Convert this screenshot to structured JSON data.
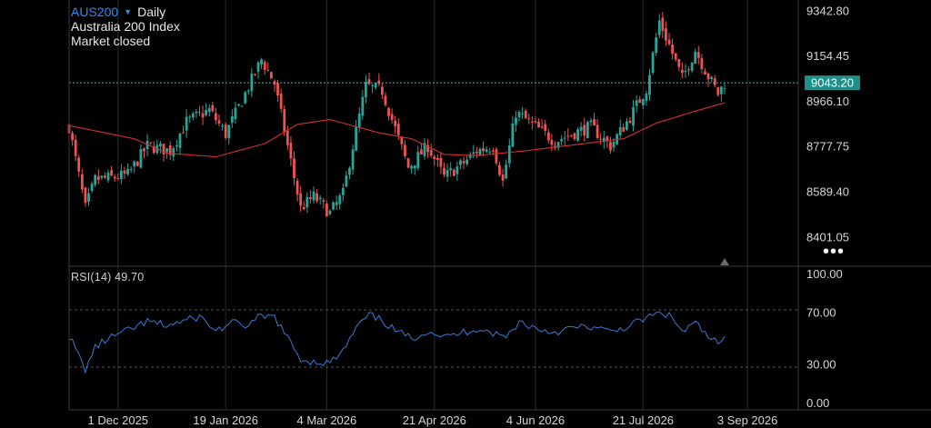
{
  "header": {
    "symbol": "AUS200",
    "timeframe": "Daily",
    "name": "Australia 200 Index",
    "status": "Market closed"
  },
  "last_price": "9043.20",
  "rsi_label": "RSI(14)",
  "rsi_value": "49.70",
  "colors": {
    "up": "#26a69a",
    "down": "#ef5350",
    "ma": "#d32f2f",
    "rsi": "#3a7bd5",
    "price_tag": "#1f8f89",
    "grid": "#2a2a2a"
  },
  "chart_data": [
    {
      "type": "candlestick",
      "title": "AUS200 Daily",
      "y_ticks": [
        "9342.80",
        "9154.45",
        "8966.10",
        "8777.75",
        "8589.40",
        "8401.05"
      ],
      "ylim": [
        8279,
        9388
      ],
      "x_ticks": [
        "1 Dec 2025",
        "19 Jan 2026",
        "4 Mar 2026",
        "21 Apr 2026",
        "4 Jun 2026",
        "21 Jul 2026",
        "3 Sep 2026"
      ],
      "x_tick_index": [
        15,
        48,
        79,
        112,
        143,
        176,
        208
      ],
      "moving_average_anchors": [
        [
          0,
          8865
        ],
        [
          20,
          8810
        ],
        [
          30,
          8750
        ],
        [
          45,
          8735
        ],
        [
          60,
          8790
        ],
        [
          70,
          8870
        ],
        [
          80,
          8890
        ],
        [
          95,
          8835
        ],
        [
          105,
          8810
        ],
        [
          115,
          8745
        ],
        [
          125,
          8740
        ],
        [
          140,
          8760
        ],
        [
          155,
          8785
        ],
        [
          170,
          8810
        ],
        [
          180,
          8875
        ],
        [
          192,
          8925
        ],
        [
          201,
          8960
        ]
      ],
      "close_anchors": [
        [
          0,
          8860
        ],
        [
          5,
          8520
        ],
        [
          8,
          8640
        ],
        [
          14,
          8650
        ],
        [
          18,
          8660
        ],
        [
          24,
          8780
        ],
        [
          31,
          8760
        ],
        [
          36,
          8880
        ],
        [
          43,
          8930
        ],
        [
          48,
          8830
        ],
        [
          53,
          8970
        ],
        [
          59,
          9140
        ],
        [
          63,
          9040
        ],
        [
          71,
          8520
        ],
        [
          75,
          8570
        ],
        [
          80,
          8500
        ],
        [
          84,
          8580
        ],
        [
          87,
          8780
        ],
        [
          91,
          9030
        ],
        [
          96,
          9010
        ],
        [
          99,
          8890
        ],
        [
          104,
          8690
        ],
        [
          110,
          8780
        ],
        [
          115,
          8650
        ],
        [
          121,
          8710
        ],
        [
          125,
          8760
        ],
        [
          130,
          8780
        ],
        [
          133,
          8630
        ],
        [
          137,
          8920
        ],
        [
          144,
          8850
        ],
        [
          149,
          8800
        ],
        [
          154,
          8830
        ],
        [
          160,
          8860
        ],
        [
          166,
          8780
        ],
        [
          172,
          8900
        ],
        [
          177,
          9020
        ],
        [
          181,
          9300
        ],
        [
          184,
          9200
        ],
        [
          188,
          9060
        ],
        [
          192,
          9180
        ],
        [
          196,
          9070
        ],
        [
          199,
          8998
        ],
        [
          201,
          9043
        ]
      ]
    },
    {
      "type": "line",
      "title": "RSI(14)",
      "y_ticks": [
        "100.00",
        "70.00",
        "30.00",
        "0.00"
      ],
      "ylim": [
        0,
        100
      ],
      "reference_lines": [
        70,
        30
      ],
      "anchors": [
        [
          0,
          52
        ],
        [
          5,
          26
        ],
        [
          8,
          43
        ],
        [
          12,
          50
        ],
        [
          18,
          56
        ],
        [
          24,
          63
        ],
        [
          30,
          60
        ],
        [
          36,
          64
        ],
        [
          40,
          67
        ],
        [
          45,
          56
        ],
        [
          50,
          62
        ],
        [
          55,
          60
        ],
        [
          58,
          66
        ],
        [
          63,
          67
        ],
        [
          67,
          50
        ],
        [
          71,
          34
        ],
        [
          75,
          32
        ],
        [
          80,
          31
        ],
        [
          84,
          40
        ],
        [
          88,
          58
        ],
        [
          92,
          68
        ],
        [
          96,
          64
        ],
        [
          100,
          56
        ],
        [
          105,
          50
        ],
        [
          110,
          56
        ],
        [
          116,
          51
        ],
        [
          121,
          55
        ],
        [
          126,
          58
        ],
        [
          130,
          54
        ],
        [
          134,
          51
        ],
        [
          138,
          63
        ],
        [
          144,
          57
        ],
        [
          149,
          55
        ],
        [
          154,
          58
        ],
        [
          160,
          59
        ],
        [
          166,
          55
        ],
        [
          172,
          60
        ],
        [
          178,
          67
        ],
        [
          182,
          70
        ],
        [
          185,
          66
        ],
        [
          188,
          55
        ],
        [
          192,
          62
        ],
        [
          196,
          51
        ],
        [
          199,
          46
        ],
        [
          201,
          49.7
        ]
      ]
    }
  ]
}
